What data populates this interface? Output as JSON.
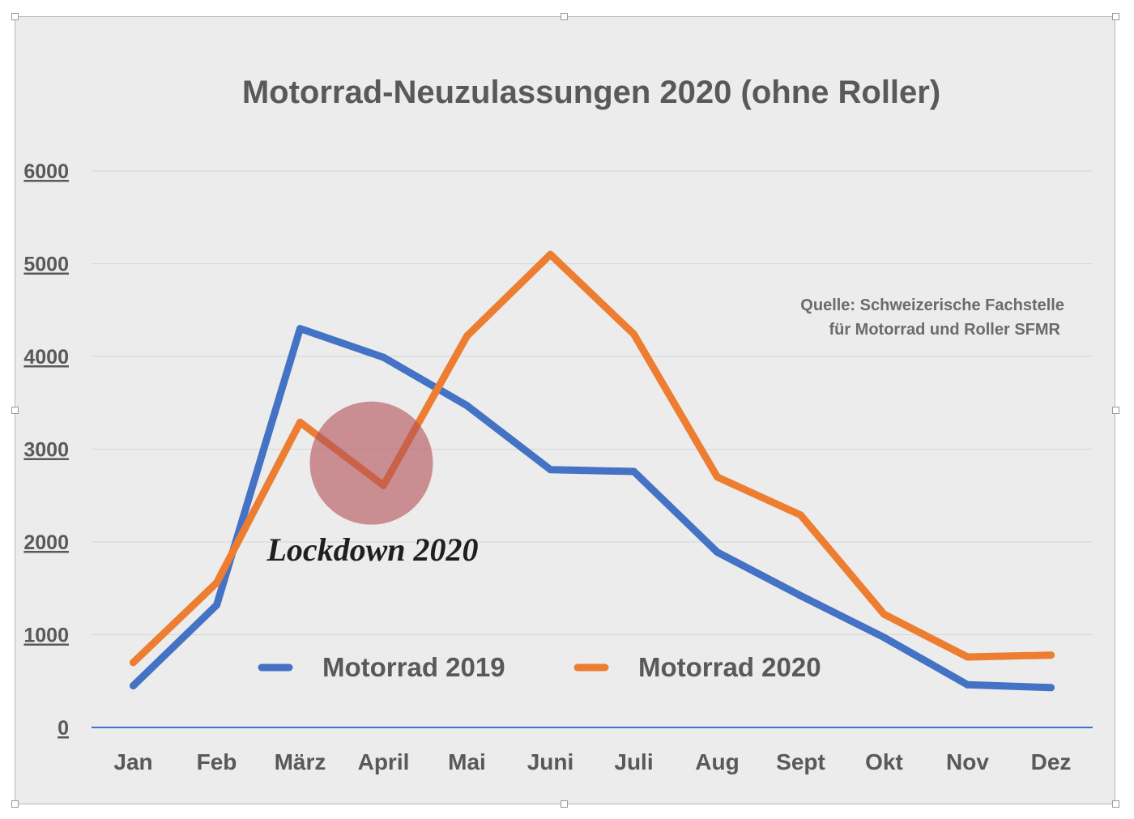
{
  "colors": {
    "series_2019": "#4472c4",
    "series_2020": "#ed7d31",
    "lockdown_circle": "#b5525a",
    "grid": "#d9d9d9",
    "axis": "#4472c4",
    "background": "#ececec"
  },
  "chart_data": {
    "type": "line",
    "title": "Motorrad-Neuzulassungen 2020 (ohne Roller)",
    "categories": [
      "Jan",
      "Feb",
      "März",
      "April",
      "Mai",
      "Juni",
      "Juli",
      "Aug",
      "Sept",
      "Okt",
      "Nov",
      "Dez"
    ],
    "ylim": [
      0,
      6000
    ],
    "yticks": [
      "0",
      "1000",
      "2000",
      "3000",
      "4000",
      "5000",
      "6000"
    ],
    "grid": true,
    "legend_position": "bottom-center",
    "series": [
      {
        "name": "Motorrad 2019",
        "color": "#4472c4",
        "values": [
          450,
          1320,
          4300,
          3990,
          3470,
          2780,
          2760,
          1890,
          1420,
          970,
          460,
          430
        ]
      },
      {
        "name": "Motorrad 2020",
        "color": "#ed7d31",
        "values": [
          700,
          1560,
          3290,
          2610,
          4220,
          5100,
          4240,
          2700,
          2290,
          1220,
          760,
          780
        ]
      }
    ],
    "annotations": {
      "source_line1": "Quelle: Schweizerische Fachstelle",
      "source_line2": "für Motorrad und Roller SFMR",
      "lockdown_label": "Lockdown 2020",
      "lockdown_month": "April",
      "lockdown_value": 2850
    }
  }
}
